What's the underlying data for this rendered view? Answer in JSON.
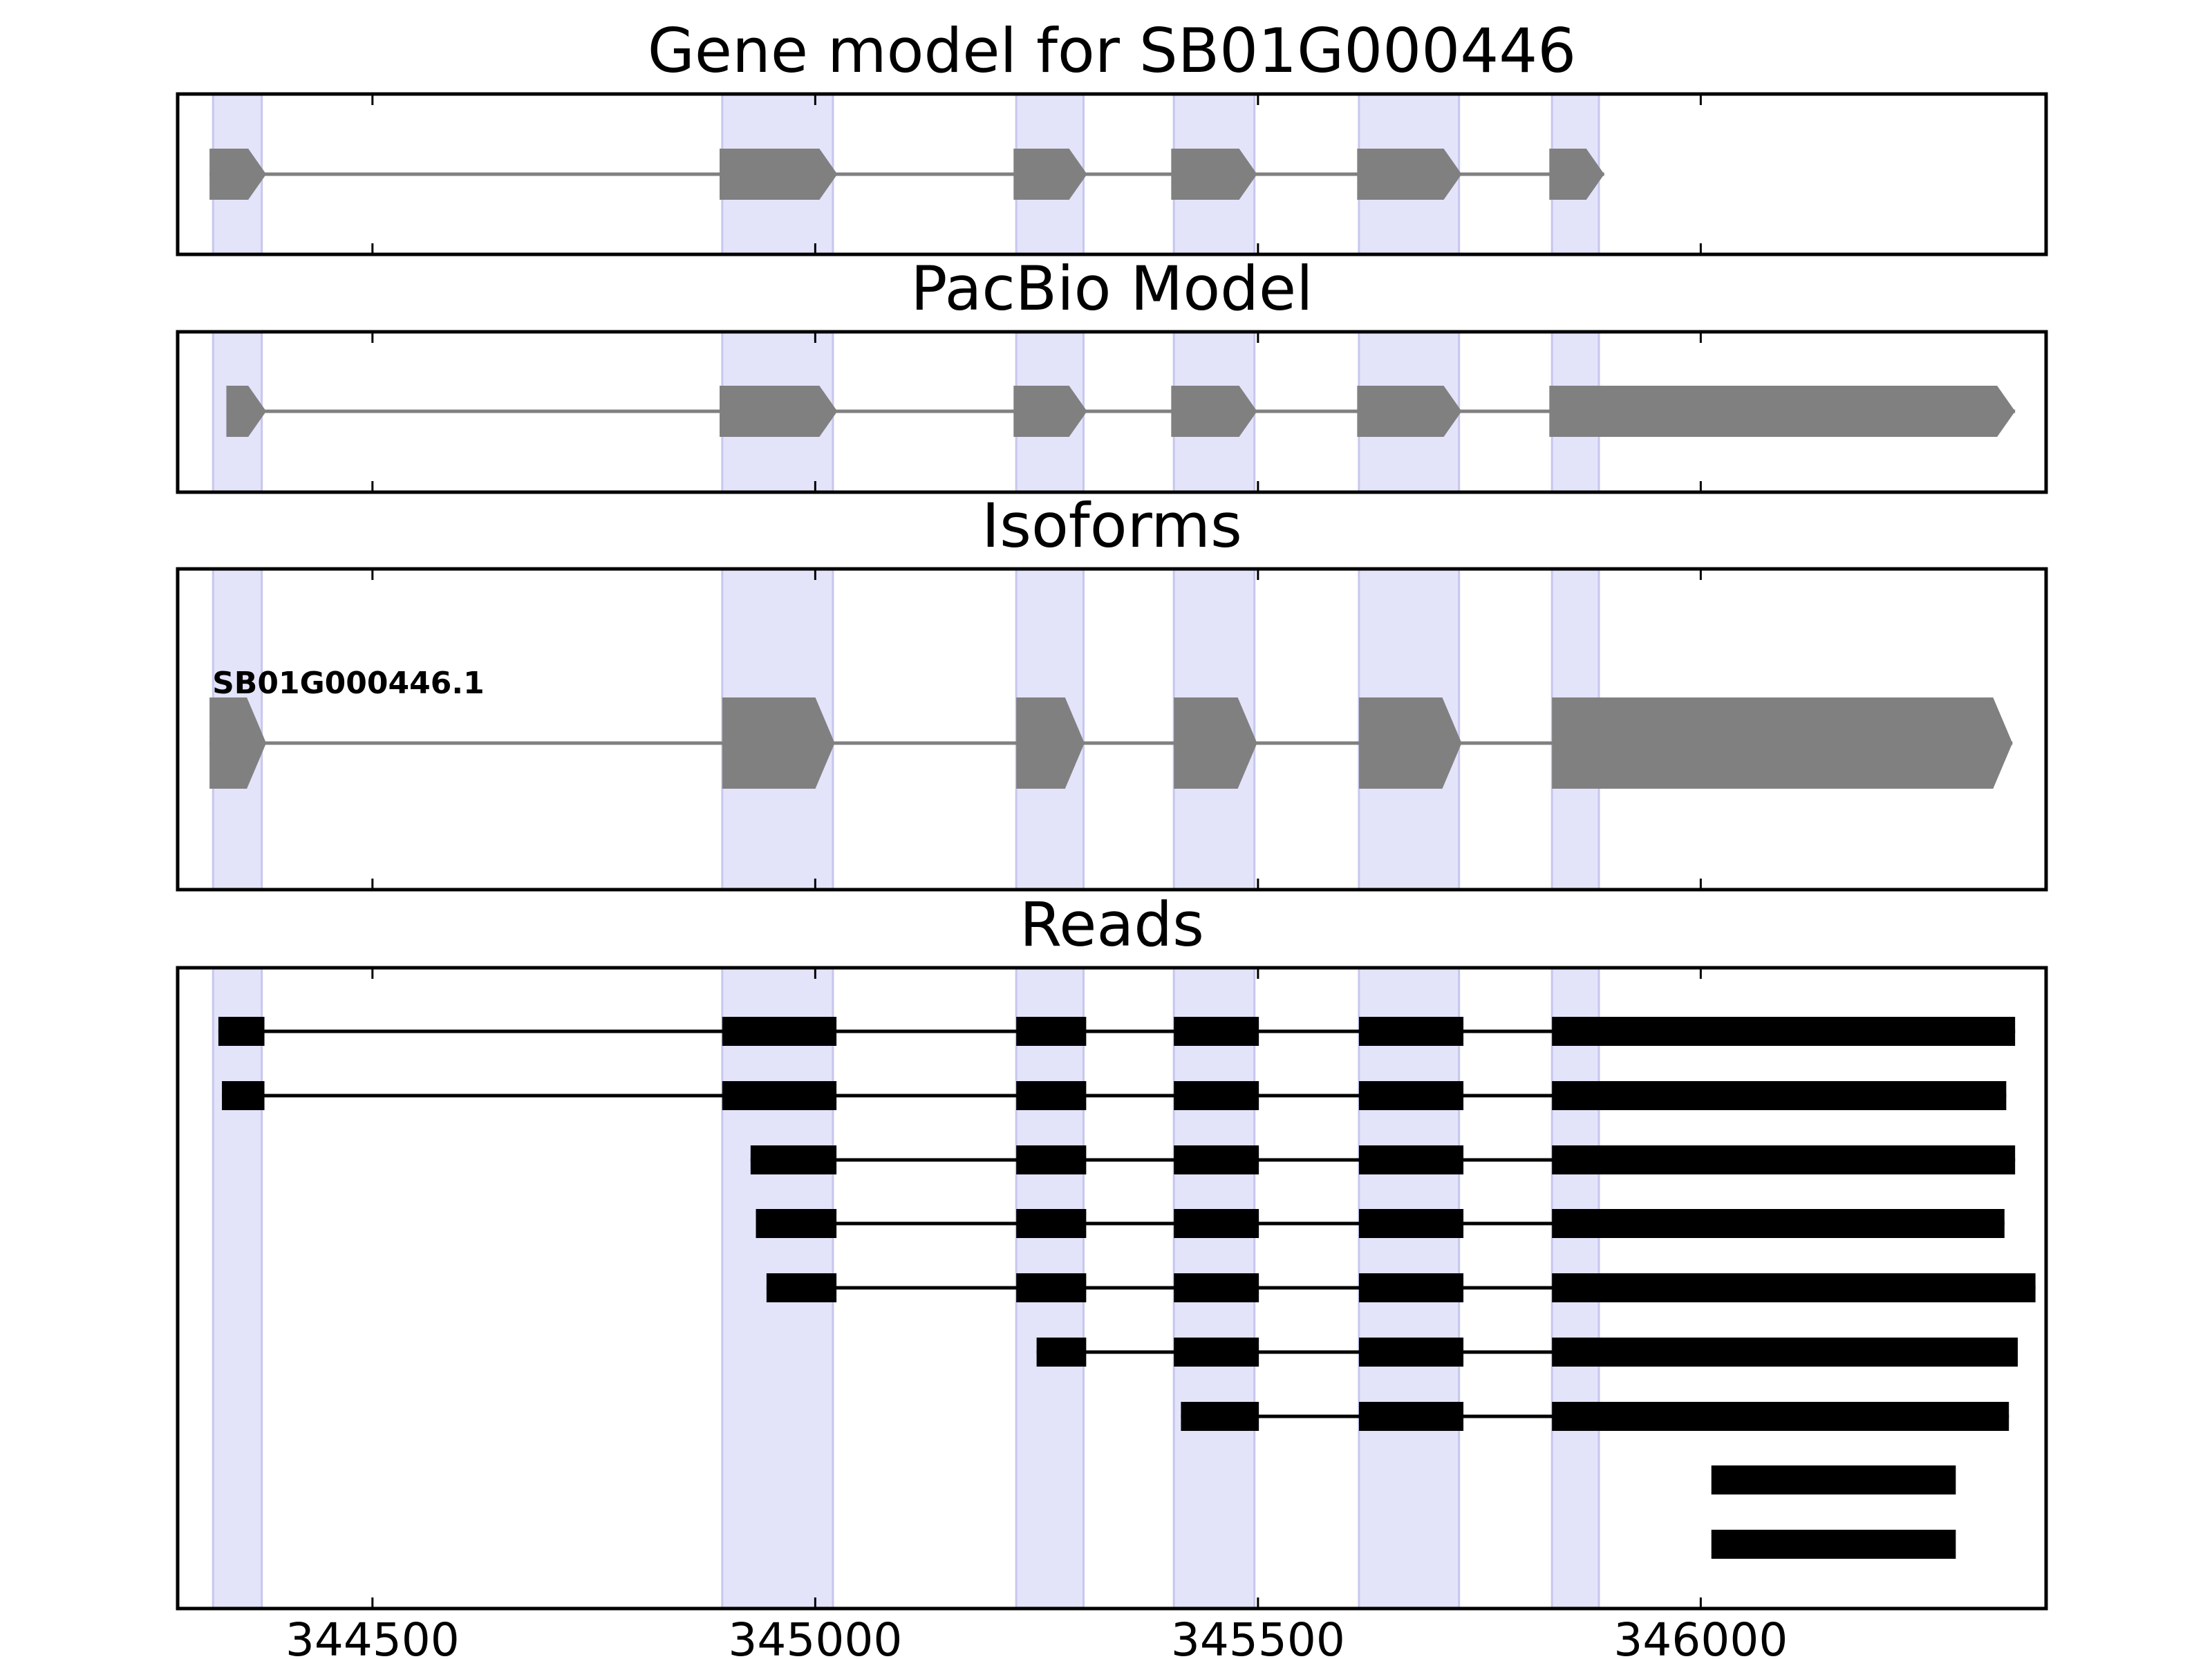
{
  "chart_data": {
    "type": "gene-structure",
    "xlim": [
      344280,
      346390
    ],
    "xticks": [
      344500,
      345000,
      345500,
      346000
    ],
    "tick_labels": [
      "344500",
      "345000",
      "345500",
      "346000"
    ],
    "colors": {
      "highlight": "#e3e3fa",
      "highlight_edge": "#c7c7ee",
      "exon": "#808080",
      "intron": "#808080",
      "read": "#000000"
    },
    "highlight_regions": [
      [
        344320,
        344375
      ],
      [
        344895,
        345020
      ],
      [
        345227,
        345303
      ],
      [
        345405,
        345496
      ],
      [
        345614,
        345727
      ],
      [
        345832,
        345885
      ]
    ],
    "panels": [
      {
        "title": "Gene model for SB01G000446",
        "kind": "model",
        "exons": [
          [
            344316,
            344380
          ],
          [
            344892,
            345025
          ],
          [
            345224,
            345307
          ],
          [
            345402,
            345499
          ],
          [
            345612,
            345730
          ],
          [
            345829,
            345891
          ]
        ]
      },
      {
        "title": "PacBio Model",
        "kind": "model",
        "exons": [
          [
            344335,
            344380
          ],
          [
            344892,
            345025
          ],
          [
            345224,
            345307
          ],
          [
            345402,
            345499
          ],
          [
            345612,
            345730
          ],
          [
            345829,
            346355
          ]
        ]
      },
      {
        "title": "Isoforms",
        "kind": "isoforms",
        "isoforms": [
          {
            "label": "SB01G000446.1",
            "exons": [
              [
                344316,
                344380
              ],
              [
                344895,
                345022
              ],
              [
                345227,
                345304
              ],
              [
                345405,
                345499
              ],
              [
                345614,
                345730
              ],
              [
                345832,
                346352
              ]
            ]
          }
        ]
      },
      {
        "title": "Reads",
        "kind": "reads",
        "reads": [
          [
            [
              344326,
              344378
            ],
            [
              344895,
              345024
            ],
            [
              345227,
              345306
            ],
            [
              345405,
              345501
            ],
            [
              345614,
              345732
            ],
            [
              345832,
              346355
            ]
          ],
          [
            [
              344330,
              344378
            ],
            [
              344895,
              345024
            ],
            [
              345227,
              345306
            ],
            [
              345405,
              345501
            ],
            [
              345614,
              345732
            ],
            [
              345832,
              346345
            ]
          ],
          [
            [
              344927,
              345024
            ],
            [
              345227,
              345306
            ],
            [
              345405,
              345501
            ],
            [
              345614,
              345732
            ],
            [
              345832,
              346355
            ]
          ],
          [
            [
              344933,
              345024
            ],
            [
              345227,
              345306
            ],
            [
              345405,
              345501
            ],
            [
              345614,
              345732
            ],
            [
              345832,
              346343
            ]
          ],
          [
            [
              344945,
              345024
            ],
            [
              345227,
              345306
            ],
            [
              345405,
              345501
            ],
            [
              345614,
              345732
            ],
            [
              345832,
              346378
            ]
          ],
          [
            [
              345250,
              345306
            ],
            [
              345405,
              345501
            ],
            [
              345614,
              345732
            ],
            [
              345832,
              346358
            ]
          ],
          [
            [
              345413,
              345501
            ],
            [
              345614,
              345732
            ],
            [
              345832,
              346348
            ]
          ],
          [
            [
              346012,
              346288
            ]
          ],
          [
            [
              346012,
              346288
            ]
          ]
        ]
      }
    ]
  }
}
